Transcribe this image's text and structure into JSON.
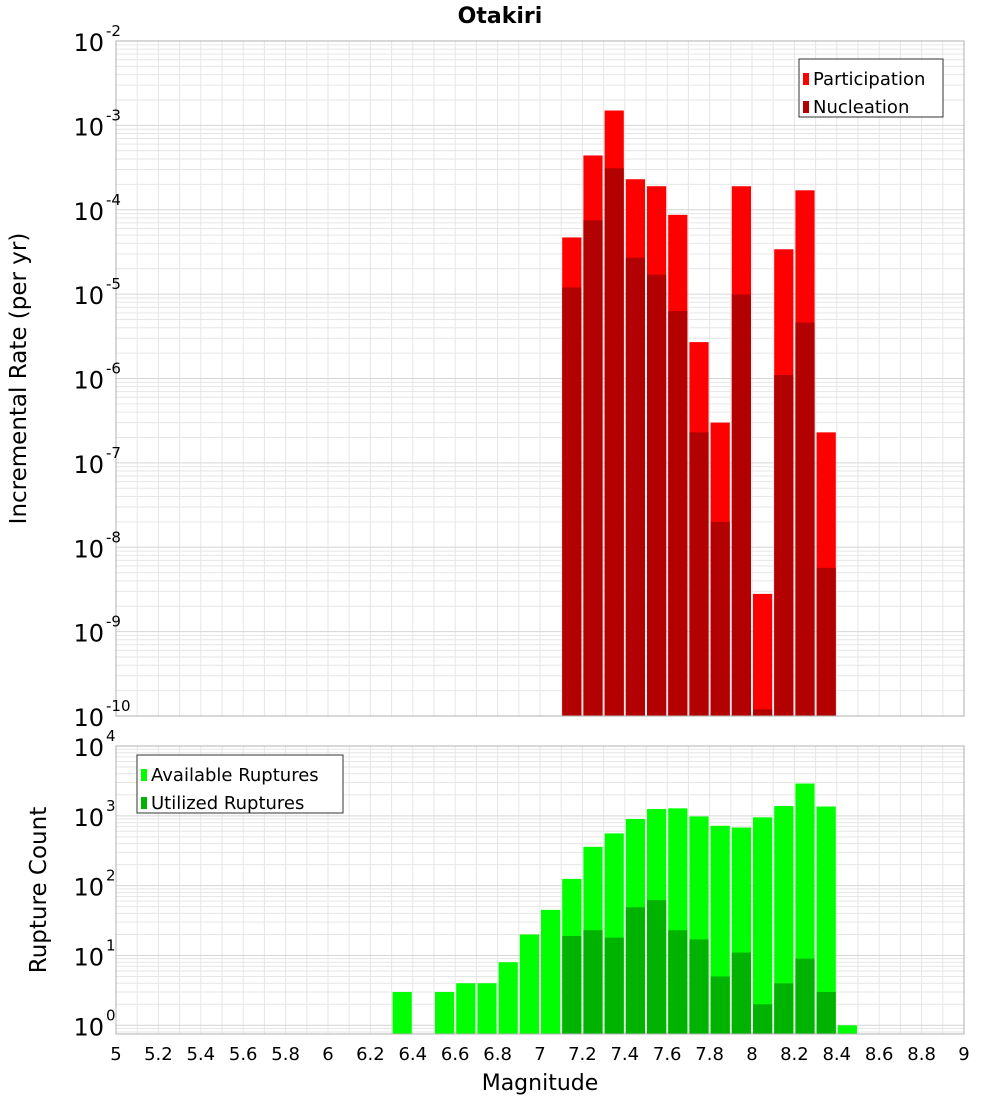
{
  "title": "Otakiri",
  "xlabel": "Magnitude",
  "x_ticks": [
    "5",
    "5.2",
    "5.4",
    "5.6",
    "5.8",
    "6",
    "6.2",
    "6.4",
    "6.6",
    "6.8",
    "7",
    "7.2",
    "7.4",
    "7.6",
    "7.8",
    "8",
    "8.2",
    "8.4",
    "8.6",
    "8.8",
    "9"
  ],
  "colors": {
    "participation": "#ff0000",
    "nucleation": "#b30000",
    "available": "#00ff00",
    "utilized": "#00b300",
    "grid": "#e6e6e6",
    "frame": "#b0b0b0"
  },
  "chart_data": [
    {
      "type": "bar",
      "title": "Otakiri",
      "xlabel": "",
      "ylabel": "Incremental Rate (per yr)",
      "ylabel_tokens": [
        "Incremental",
        "Rate",
        "(per",
        "yr)"
      ],
      "yscale": "log",
      "xlim": [
        5,
        9
      ],
      "ylim": [
        1e-10,
        0.01
      ],
      "y_ticks": [
        {
          "base": "10",
          "exp": "-2"
        },
        {
          "base": "10",
          "exp": "-3"
        },
        {
          "base": "10",
          "exp": "-4"
        },
        {
          "base": "10",
          "exp": "-5"
        },
        {
          "base": "10",
          "exp": "-6"
        },
        {
          "base": "10",
          "exp": "-7"
        },
        {
          "base": "10",
          "exp": "-8"
        },
        {
          "base": "10",
          "exp": "-9"
        },
        {
          "base": "10",
          "exp": "-10"
        }
      ],
      "legend_position": "top-right",
      "grid": true,
      "x": [
        7.15,
        7.25,
        7.35,
        7.45,
        7.55,
        7.65,
        7.75,
        7.85,
        7.95,
        8.05,
        8.15,
        8.25,
        8.35
      ],
      "series": [
        {
          "name": "Participation",
          "values": [
            4.7e-05,
            0.00044,
            0.0015,
            0.00023,
            0.00019,
            8.7e-05,
            2.7e-06,
            3e-07,
            0.00019,
            2.8e-09,
            3.4e-05,
            0.00017,
            2.3e-07
          ]
        },
        {
          "name": "Nucleation",
          "values": [
            1.2e-05,
            7.5e-05,
            0.00031,
            2.7e-05,
            1.7e-05,
            6.3e-06,
            2.3e-07,
            2e-08,
            9.9e-06,
            1.2e-10,
            1.1e-06,
            4.6e-06,
            5.7e-09
          ]
        }
      ]
    },
    {
      "type": "bar",
      "title": "",
      "xlabel": "Magnitude",
      "ylabel": "Rupture Count",
      "ylabel_tokens": [
        "Rupture",
        "Count"
      ],
      "yscale": "log",
      "xlim": [
        5,
        9
      ],
      "ylim": [
        0.75,
        10000
      ],
      "y_ticks": [
        {
          "base": "10",
          "exp": "4"
        },
        {
          "base": "10",
          "exp": "3"
        },
        {
          "base": "10",
          "exp": "2"
        },
        {
          "base": "10",
          "exp": "1"
        },
        {
          "base": "10",
          "exp": "0"
        }
      ],
      "legend_position": "top-left",
      "grid": true,
      "x": [
        6.35,
        6.55,
        6.65,
        6.75,
        6.85,
        6.95,
        7.05,
        7.15,
        7.25,
        7.35,
        7.45,
        7.55,
        7.65,
        7.75,
        7.85,
        7.95,
        8.05,
        8.15,
        8.25,
        8.35,
        8.45
      ],
      "series": [
        {
          "name": "Available Ruptures",
          "values": [
            3,
            3,
            4,
            4,
            8,
            20,
            45,
            125,
            360,
            560,
            900,
            1250,
            1280,
            980,
            720,
            680,
            950,
            1380,
            2900,
            1360,
            1
          ]
        },
        {
          "name": "Utilized Ruptures",
          "values": [
            0,
            0,
            0,
            0,
            0,
            0,
            0,
            19,
            23,
            18,
            49,
            62,
            23,
            17,
            5,
            11,
            2,
            4,
            9,
            3,
            0
          ]
        }
      ]
    }
  ]
}
